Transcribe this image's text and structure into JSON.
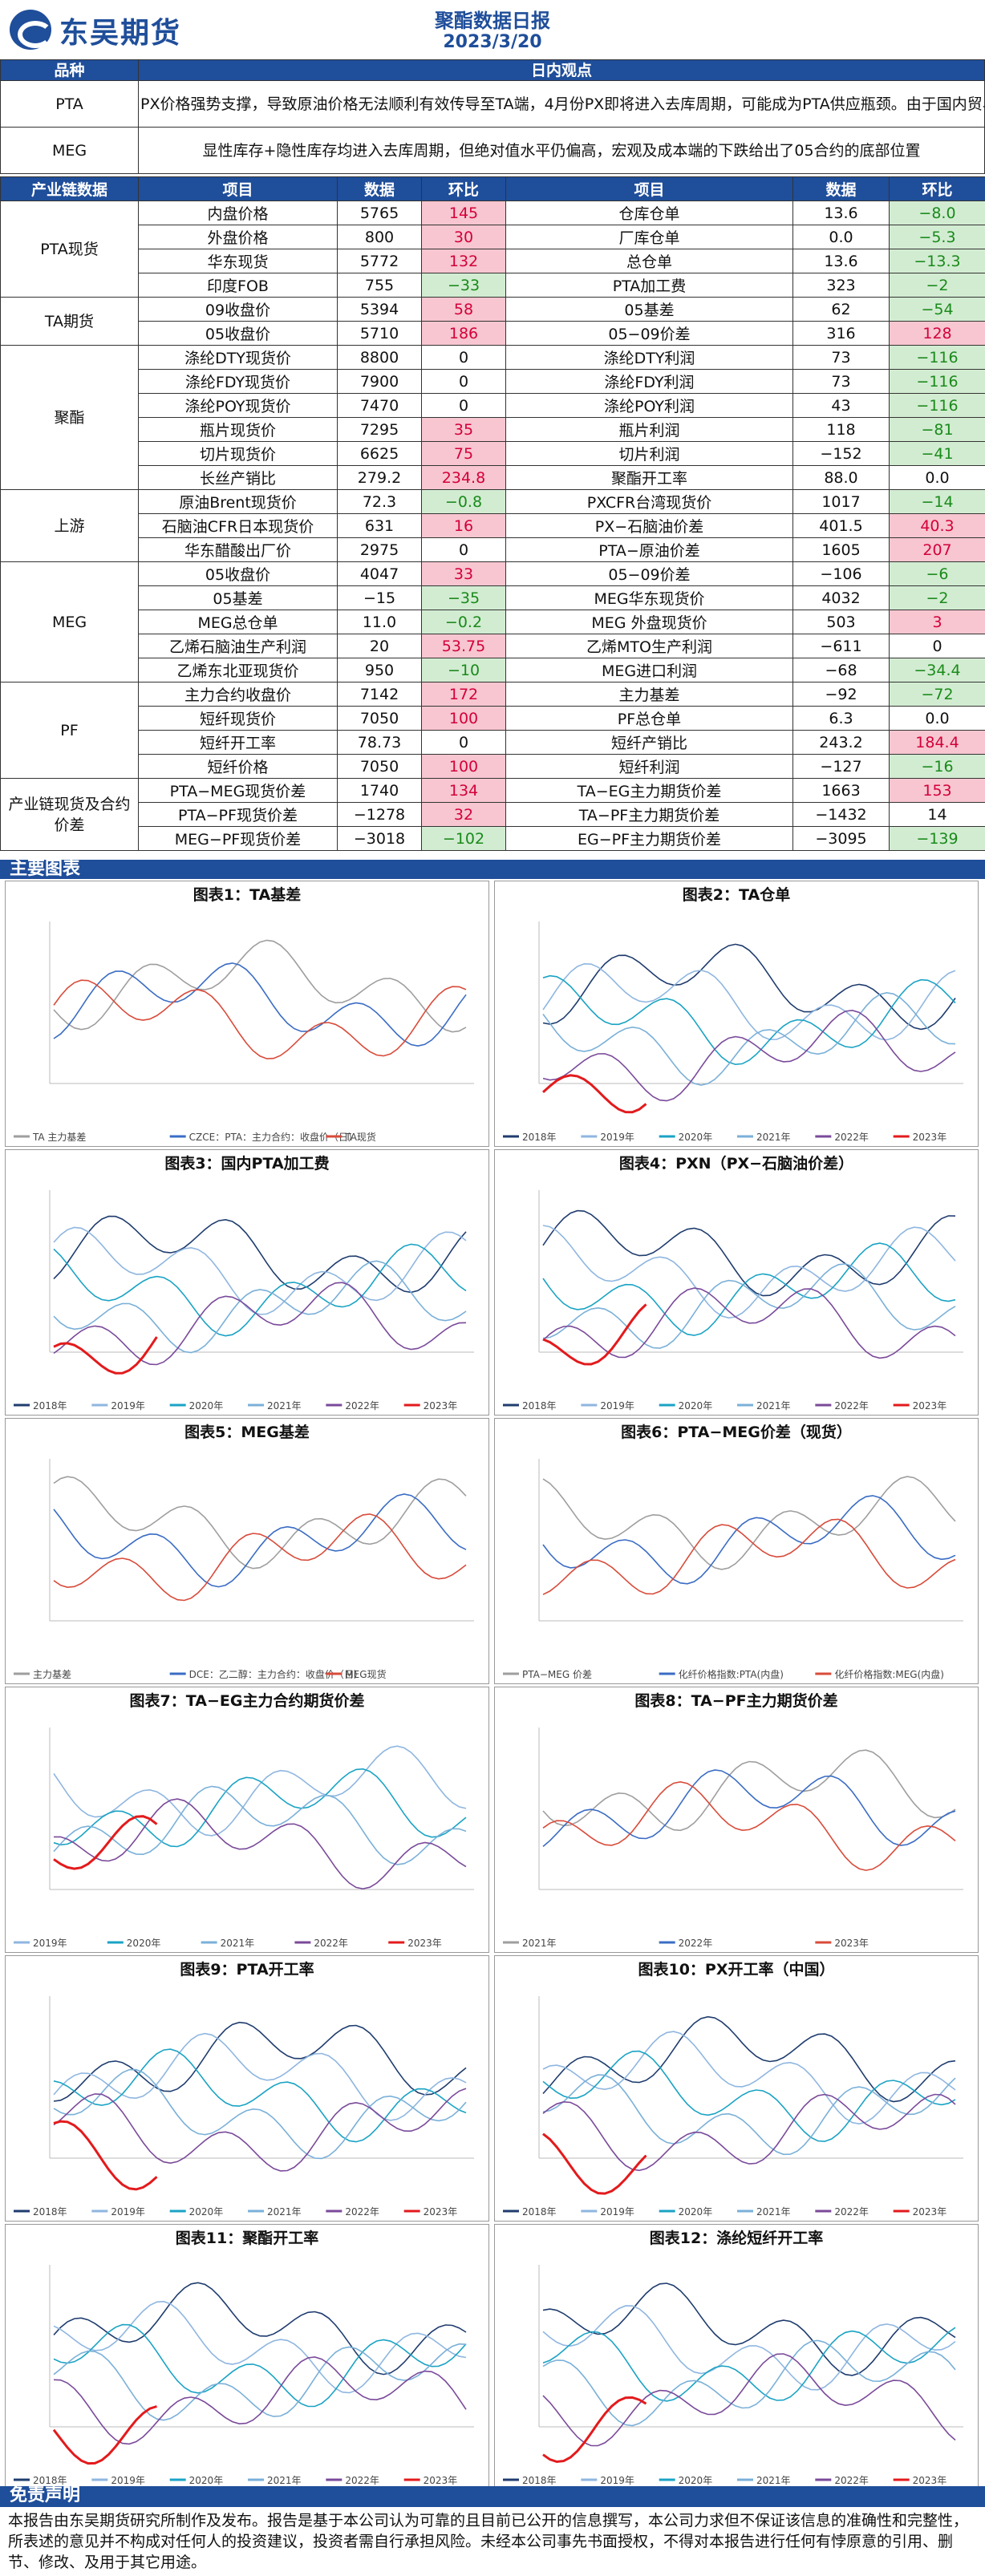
{
  "header": {
    "brand": "东吴期货",
    "title": "聚酯数据日报",
    "date": "2023/3/20"
  },
  "view_section": {
    "col1": "品种",
    "col2": "日内观点",
    "rows": [
      {
        "name": "PTA",
        "text": "PX价格强势支撑，导致原油价格无法顺利有效传导至TA端，4月份PX即将进入去库周期，可能成为PTA供应瓶颈。由于国内贸易商惜售的动作，现货流通性偏紧，社会库存连续去库，基差大幅走强"
      },
      {
        "name": "MEG",
        "text": "显性库存+隐性库存均进入去库周期，但绝对值水平仍偏高，宏观及成本端的下跌给出了05合约的底部位置"
      }
    ]
  },
  "data_header": {
    "c0": "产业链数据",
    "c1": "项目",
    "c2": "数据",
    "c3": "环比",
    "c4": "项目",
    "c5": "数据",
    "c6": "环比"
  },
  "groups": [
    {
      "name": "PTA现货",
      "rows": [
        [
          "内盘价格",
          "5765",
          "145",
          "pink",
          "仓库仓单",
          "13.6",
          "−8.0",
          "green"
        ],
        [
          "外盘价格",
          "800",
          "30",
          "pink",
          "厂库仓单",
          "0.0",
          "−5.3",
          "green"
        ],
        [
          "华东现货",
          "5772",
          "132",
          "pink",
          "总仓单",
          "13.6",
          "−13.3",
          "green"
        ],
        [
          "印度FOB",
          "755",
          "−33",
          "green",
          "PTA加工费",
          "323",
          "−2",
          "green"
        ]
      ]
    },
    {
      "name": "TA期货",
      "rows": [
        [
          "09收盘价",
          "5394",
          "58",
          "pink",
          "05基差",
          "62",
          "−54",
          "green"
        ],
        [
          "05收盘价",
          "5710",
          "186",
          "pink",
          "05−09价差",
          "316",
          "128",
          "pink"
        ]
      ]
    },
    {
      "name": "聚酯",
      "rows": [
        [
          "涤纶DTY现货价",
          "8800",
          "0",
          "",
          "涤纶DTY利润",
          "73",
          "−116",
          "green"
        ],
        [
          "涤纶FDY现货价",
          "7900",
          "0",
          "",
          "涤纶FDY利润",
          "73",
          "−116",
          "green"
        ],
        [
          "涤纶POY现货价",
          "7470",
          "0",
          "",
          "涤纶POY利润",
          "43",
          "−116",
          "green"
        ],
        [
          "瓶片现货价",
          "7295",
          "35",
          "pink",
          "瓶片利润",
          "118",
          "−81",
          "green"
        ],
        [
          "切片现货价",
          "6625",
          "75",
          "pink",
          "切片利润",
          "−152",
          "−41",
          "green"
        ],
        [
          "长丝产销比",
          "279.2",
          "234.8",
          "pink",
          "聚酯开工率",
          "88.0",
          "0.0",
          ""
        ]
      ]
    },
    {
      "name": "上游",
      "rows": [
        [
          "原油Brent现货价",
          "72.3",
          "−0.8",
          "green",
          "PXCFR台湾现货价",
          "1017",
          "−14",
          "green"
        ],
        [
          "石脑油CFR日本现货价",
          "631",
          "16",
          "pink",
          "PX−石脑油价差",
          "401.5",
          "40.3",
          "pink"
        ],
        [
          "华东醋酸出厂价",
          "2975",
          "0",
          "",
          "PTA−原油价差",
          "1605",
          "207",
          "pink"
        ]
      ]
    },
    {
      "name": "MEG",
      "rows": [
        [
          "05收盘价",
          "4047",
          "33",
          "pink",
          "05−09价差",
          "−106",
          "−6",
          "green"
        ],
        [
          "05基差",
          "−15",
          "−35",
          "green",
          "MEG华东现货价",
          "4032",
          "−2",
          "green"
        ],
        [
          "MEG总仓单",
          "11.0",
          "−0.2",
          "green",
          "MEG 外盘现货价",
          "503",
          "3",
          "pink"
        ],
        [
          "乙烯石脑油生产利润",
          "20",
          "53.75",
          "pink",
          "乙烯MTO生产利润",
          "−611",
          "0",
          ""
        ],
        [
          "乙烯东北亚现货价",
          "950",
          "−10",
          "green",
          "MEG进口利润",
          "−68",
          "−34.4",
          "green"
        ]
      ]
    },
    {
      "name": "PF",
      "rows": [
        [
          "主力合约收盘价",
          "7142",
          "172",
          "pink",
          "主力基差",
          "−92",
          "−72",
          "green"
        ],
        [
          "短纤现货价",
          "7050",
          "100",
          "pink",
          "PF总仓单",
          "6.3",
          "0.0",
          ""
        ],
        [
          "短纤开工率",
          "78.73",
          "0",
          "",
          "短纤产销比",
          "243.2",
          "184.4",
          "pink"
        ],
        [
          "短纤价格",
          "7050",
          "100",
          "pink",
          "短纤利润",
          "−127",
          "−16",
          "green"
        ]
      ]
    },
    {
      "name": "产业链现货及合约价差",
      "rows": [
        [
          "PTA−MEG现货价差",
          "1740",
          "134",
          "pink",
          "TA−EG主力期货价差",
          "1663",
          "153",
          "pink"
        ],
        [
          "PTA−PF现货价差",
          "−1278",
          "32",
          "pink",
          "TA−PF主力期货价差",
          "−1432",
          "14",
          ""
        ],
        [
          "MEG−PF现货价差",
          "−3018",
          "−102",
          "green",
          "EG−PF主力期货价差",
          "−3095",
          "−139",
          "green"
        ]
      ]
    }
  ],
  "charts_bar": "主要图表",
  "charts": [
    {
      "title": "图表1：TA基差",
      "legend": [
        "TA 主力基差",
        "CZCE：PTA：主力合约：收盘价（日）",
        "TA现货"
      ]
    },
    {
      "title": "图表2：TA仓单",
      "legend": [
        "2018年",
        "2019年",
        "2020年",
        "2021年",
        "2022年",
        "2023年"
      ]
    },
    {
      "title": "图表3：国内PTA加工费",
      "legend": [
        "2018年",
        "2019年",
        "2020年",
        "2021年",
        "2022年",
        "2023年"
      ]
    },
    {
      "title": "图表4：PXN（PX−石脑油价差）",
      "legend": [
        "2018年",
        "2019年",
        "2020年",
        "2021年",
        "2022年",
        "2023年"
      ]
    },
    {
      "title": "图表5：MEG基差",
      "legend": [
        "主力基差",
        "DCE：乙二醇：主力合约：收盘价（日）",
        "MEG现货"
      ]
    },
    {
      "title": "图表6：PTA−MEG价差（现货）",
      "legend": [
        "PTA−MEG 价差",
        "化纤价格指数:PTA(内盘)",
        "化纤价格指数:MEG(内盘)"
      ]
    },
    {
      "title": "图表7：TA−EG主力合约期货价差",
      "legend": [
        "2019年",
        "2020年",
        "2021年",
        "2022年",
        "2023年"
      ]
    },
    {
      "title": "图表8：TA−PF主力期货价差",
      "legend": [
        "2021年",
        "2022年",
        "2023年"
      ]
    },
    {
      "title": "图表9：PTA开工率",
      "legend": [
        "2018年",
        "2019年",
        "2020年",
        "2021年",
        "2022年",
        "2023年"
      ]
    },
    {
      "title": "图表10：PX开工率（中国）",
      "legend": [
        "2018年",
        "2019年",
        "2020年",
        "2021年",
        "2022年",
        "2023年"
      ]
    },
    {
      "title": "图表11：聚酯开工率",
      "legend": [
        "2018年",
        "2019年",
        "2020年",
        "2021年",
        "2022年",
        "2023年"
      ]
    },
    {
      "title": "图表12：涤纶短纤开工率",
      "legend": [
        "2018年",
        "2019年",
        "2020年",
        "2021年",
        "2022年",
        "2023年"
      ]
    }
  ],
  "disclaimer": {
    "title": "免责声明",
    "text": "本报告由东吴期货研究所制作及发布。报告是基于本公司认为可靠的且目前已公开的信息撰写，本公司力求但不保证该信息的准确性和完整性，所表述的意见并不构成对任何人的投资建议，投资者需自行承担风险。未经本公司事先书面授权，不得对本报告进行任何有悖原意的引用、删节、修改、及用于其它用途。"
  },
  "colors": {
    "brand": "#1f4e9a",
    "up_bg": "#f7c6d0",
    "down_bg": "#d2ecd2"
  }
}
